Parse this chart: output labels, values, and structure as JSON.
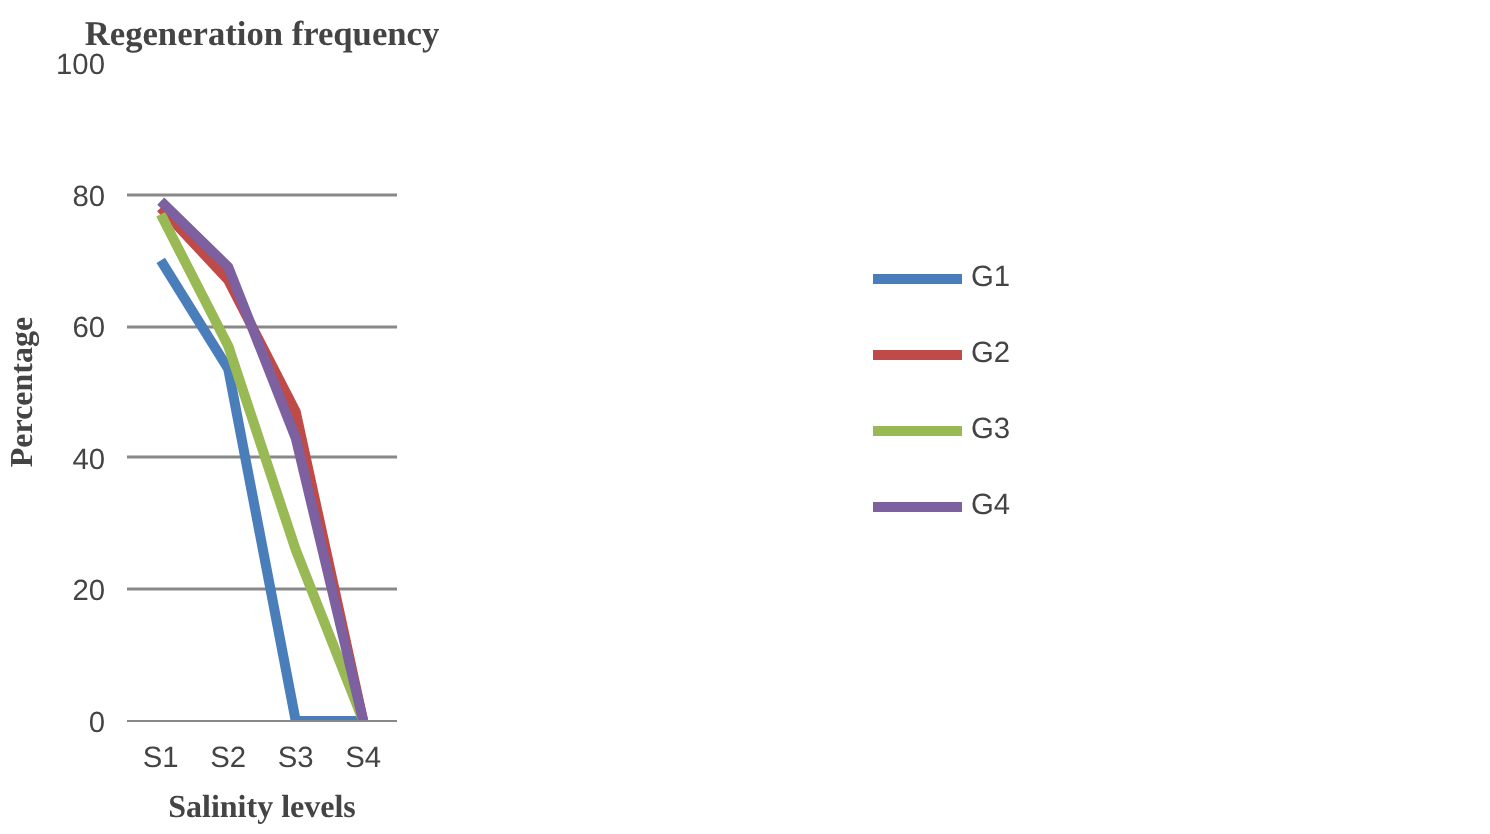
{
  "chart_data": {
    "type": "line",
    "title": "Regeneration frequency",
    "xlabel": "Salinity levels",
    "ylabel": "Percentage",
    "categories": [
      "S1",
      "S2",
      "S3",
      "S4"
    ],
    "series": [
      {
        "name": "G1",
        "color": "#4a7ebb",
        "values": [
          70,
          53.5,
          0,
          0
        ]
      },
      {
        "name": "G2",
        "color": "#be4b48",
        "values": [
          78,
          67,
          47,
          0
        ]
      },
      {
        "name": "G3",
        "color": "#98b954",
        "values": [
          77,
          57,
          26,
          0
        ]
      },
      {
        "name": "G4",
        "color": "#7d60a0",
        "values": [
          79,
          69,
          43,
          0
        ]
      }
    ],
    "ylim": [
      0,
      100
    ],
    "yticks": [
      0,
      20,
      40,
      60,
      80,
      100
    ],
    "grid": "y",
    "legend": "right",
    "marker": "none",
    "line_style": "solid"
  }
}
